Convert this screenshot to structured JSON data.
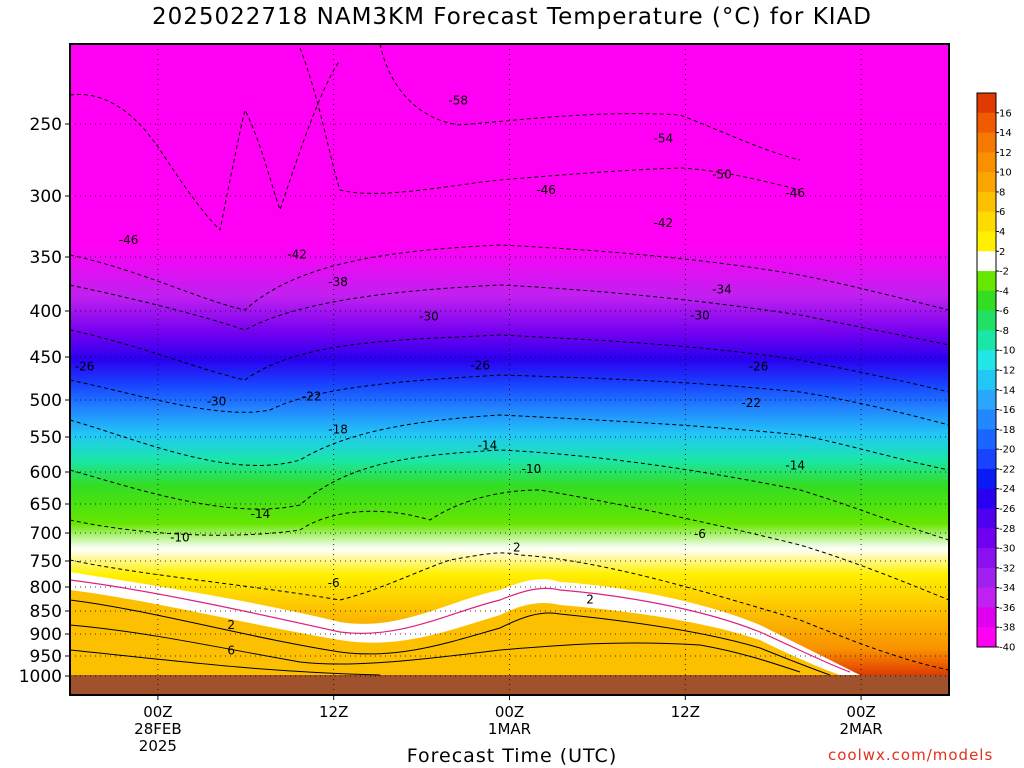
{
  "chart_data": {
    "type": "contour",
    "title": "2025022718 NAM3KM Forecast Temperature (°C) for KIAD",
    "xlabel": "Forecast Time (UTC)",
    "ylabel": "",
    "y_axis": {
      "scale": "pressure",
      "inverted": true,
      "range": [
        200,
        1030
      ],
      "ticks": [
        250,
        300,
        350,
        400,
        450,
        500,
        550,
        600,
        650,
        700,
        750,
        800,
        850,
        900,
        950,
        1000
      ]
    },
    "x_axis": {
      "range_hours": [
        -6,
        54
      ],
      "ticks": [
        {
          "hour": 0,
          "lines": [
            "00Z",
            "28FEB",
            "2025"
          ]
        },
        {
          "hour": 12,
          "lines": [
            "12Z"
          ]
        },
        {
          "hour": 24,
          "lines": [
            "00Z",
            "1MAR"
          ]
        },
        {
          "hour": 36,
          "lines": [
            "12Z"
          ]
        },
        {
          "hour": 48,
          "lines": [
            "00Z",
            "2MAR"
          ]
        }
      ]
    },
    "grid": "dotted",
    "colorbar": {
      "labels": [
        "16",
        "14",
        "12",
        "10",
        "8",
        "6",
        "4",
        "2",
        "-2",
        "-4",
        "-6",
        "-8",
        "-10",
        "-12",
        "-14",
        "-16",
        "-18",
        "-20",
        "-22",
        "-24",
        "-26",
        "-28",
        "-30",
        "-32",
        "-34",
        "-36",
        "-38",
        "-40"
      ],
      "colors": [
        "#e03a00",
        "#f05a00",
        "#f57800",
        "#f89000",
        "#fba500",
        "#fdc000",
        "#fdda00",
        "#fff000",
        "#ffffff",
        "#66e600",
        "#33dd22",
        "#22e066",
        "#1ae6a8",
        "#22e6e6",
        "#22c8f5",
        "#2aa6ff",
        "#2288ff",
        "#1a66ff",
        "#1844ff",
        "#0a1af5",
        "#2a00f0",
        "#5000f0",
        "#7000f0",
        "#8a10f0",
        "#a020f0",
        "#c020f0",
        "#e000f0",
        "#ff00f5"
      ]
    },
    "contour_labels": [
      {
        "text": "-58",
        "hour": 20.5,
        "p": 236
      },
      {
        "text": "-54",
        "hour": 34.5,
        "p": 260
      },
      {
        "text": "-50",
        "hour": 38.5,
        "p": 285
      },
      {
        "text": "-46",
        "hour": 26.5,
        "p": 296
      },
      {
        "text": "-46",
        "hour": 43.5,
        "p": 298
      },
      {
        "text": "-46",
        "hour": -2,
        "p": 336
      },
      {
        "text": "-42",
        "hour": 9.5,
        "p": 348
      },
      {
        "text": "-42",
        "hour": 34.5,
        "p": 322
      },
      {
        "text": "-38",
        "hour": 12.3,
        "p": 373
      },
      {
        "text": "-34",
        "hour": 38.5,
        "p": 380
      },
      {
        "text": "-30",
        "hour": 18.5,
        "p": 406
      },
      {
        "text": "-30",
        "hour": 37,
        "p": 405
      },
      {
        "text": "-30",
        "hour": 4,
        "p": 502
      },
      {
        "text": "-26",
        "hour": 22,
        "p": 460
      },
      {
        "text": "-26",
        "hour": 41,
        "p": 461
      },
      {
        "text": "-26",
        "hour": -5,
        "p": 461
      },
      {
        "text": "-22",
        "hour": 10.5,
        "p": 496
      },
      {
        "text": "-22",
        "hour": 40.5,
        "p": 504
      },
      {
        "text": "-18",
        "hour": 12.3,
        "p": 540
      },
      {
        "text": "-14",
        "hour": 22.5,
        "p": 562
      },
      {
        "text": "-14",
        "hour": 43.5,
        "p": 591
      },
      {
        "text": "-14",
        "hour": 7,
        "p": 667
      },
      {
        "text": "-10",
        "hour": 25.5,
        "p": 596
      },
      {
        "text": "-10",
        "hour": 1.5,
        "p": 708
      },
      {
        "text": "-6",
        "hour": 37,
        "p": 702
      },
      {
        "text": "-6",
        "hour": 12,
        "p": 792
      },
      {
        "text": "2",
        "hour": 24.5,
        "p": 726
      },
      {
        "text": "2",
        "hour": 29.5,
        "p": 826
      },
      {
        "text": "2",
        "hour": 5,
        "p": 880
      },
      {
        "text": "6",
        "hour": 5,
        "p": 938
      }
    ]
  },
  "credit": "coolwx.com/models"
}
